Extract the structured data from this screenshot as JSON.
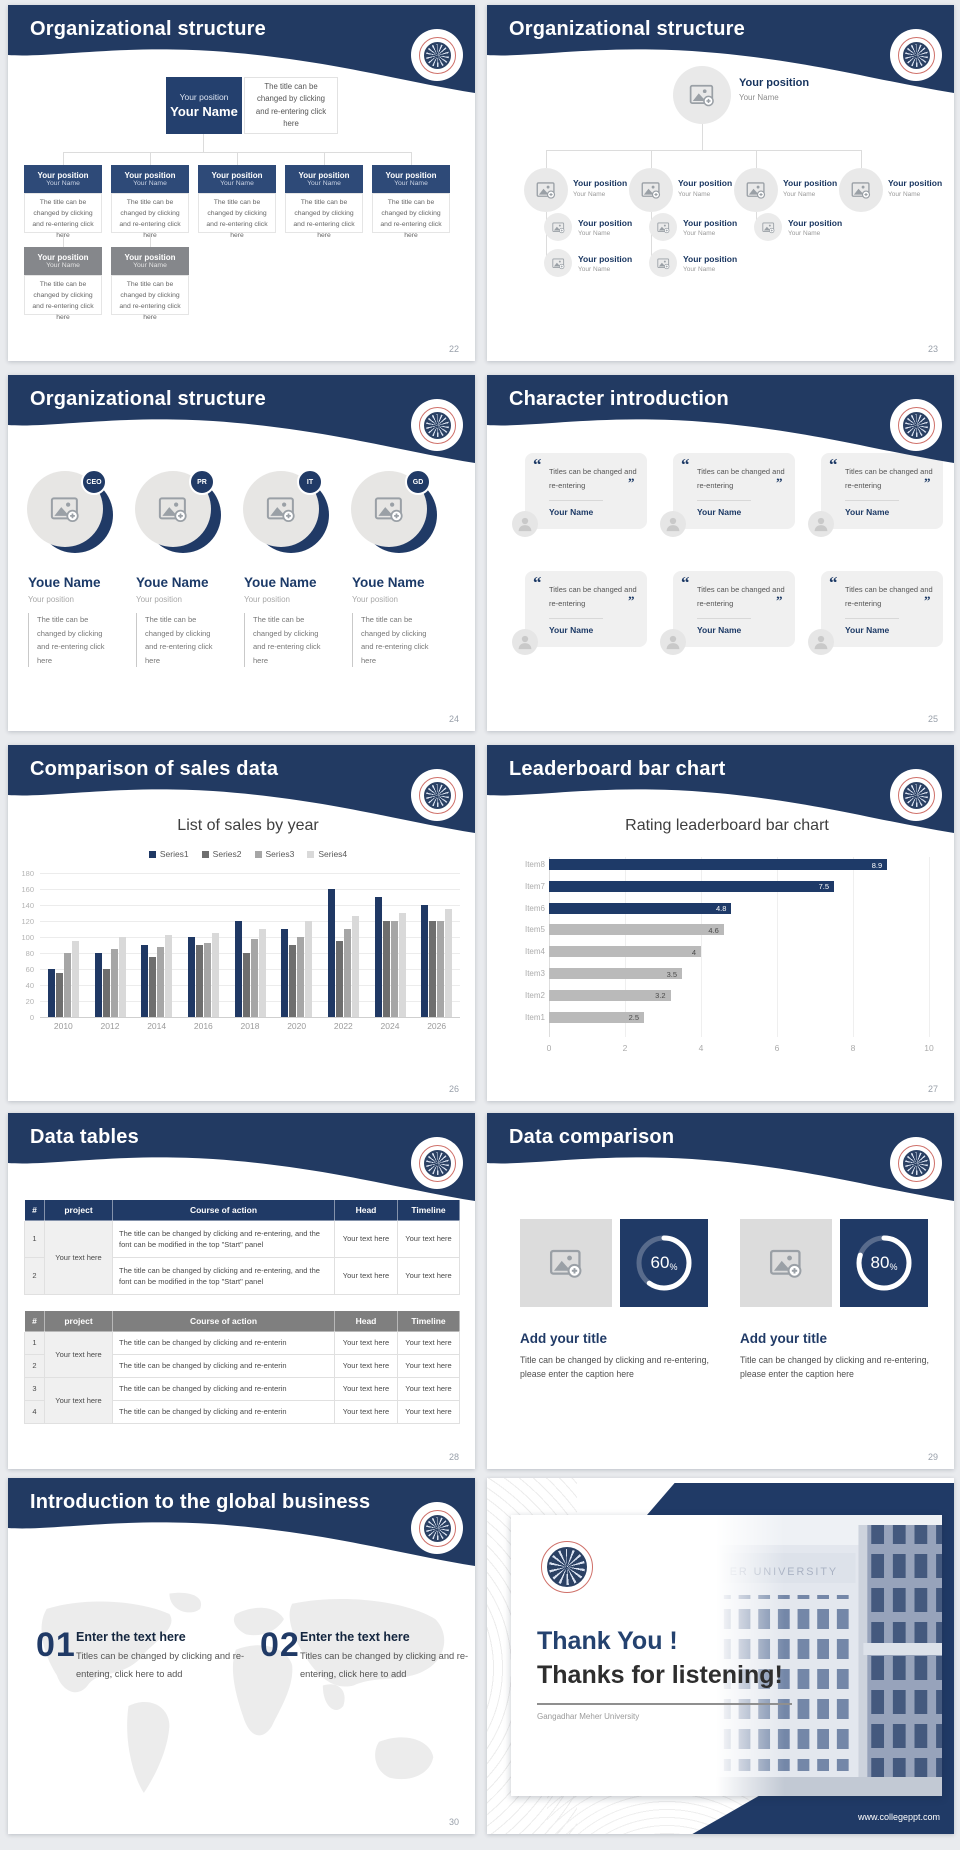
{
  "page": {
    "background": "#e9ebee",
    "accent_navy": "#223a62",
    "footer_url": "www.collegeppt.com"
  },
  "slides": {
    "s22": {
      "title": "Organizational structure",
      "number": "22",
      "root": {
        "position": "Your position",
        "name": "Your Name"
      },
      "root_caption": "The title can be changed by clicking and re-entering click here",
      "node": {
        "position": "Your position",
        "name": "Your Name"
      },
      "caption": "The title can be changed by clicking and re-entering click here",
      "level2_count": 5,
      "level3_count": 2
    },
    "s23": {
      "title": "Organizational structure",
      "number": "23",
      "node_position": "Your position",
      "node_name": "Your Name",
      "mid_count": 4,
      "sub_counts": [
        2,
        2,
        1,
        0
      ]
    },
    "s24": {
      "title": "Organizational structure",
      "number": "24",
      "badges": [
        "CEO",
        "PR",
        "IT",
        "GD"
      ],
      "name": "Youe Name",
      "position": "Your position",
      "caption": "The title can be changed by clicking and re-entering click here"
    },
    "s25": {
      "title": "Character introduction",
      "number": "25",
      "card_count": 6,
      "quote": "Titles can be changed and re-entering",
      "name": "Your Name"
    },
    "s26": {
      "title": "Comparison of sales data",
      "number": "26"
    },
    "s27": {
      "title": "Leaderboard bar chart",
      "number": "27"
    },
    "s28": {
      "title": "Data tables",
      "number": "28",
      "tables": [
        {
          "style": "navy",
          "columns": [
            "#",
            "project",
            "Course of action",
            "Head",
            "Timeline"
          ],
          "project_cells": [
            {
              "text": "Your text here",
              "span": 2
            }
          ],
          "rows": [
            [
              "1",
              "The title can be changed by clicking and re-entering, and the font can be modified in the top \"Start\" panel",
              "Your text here",
              "Your text here"
            ],
            [
              "2",
              "The title can be changed by clicking and re-entering, and the font can be modified in the top \"Start\" panel",
              "Your text here",
              "Your text here"
            ]
          ]
        },
        {
          "style": "gray",
          "columns": [
            "#",
            "project",
            "Course of action",
            "Head",
            "Timeline"
          ],
          "project_cells": [
            {
              "text": "Your text here",
              "span": 2
            },
            {
              "text": "Your text here",
              "span": 2
            }
          ],
          "rows": [
            [
              "1",
              "The title can be changed by clicking and re-enterin",
              "Your text here",
              "Your text here"
            ],
            [
              "2",
              "The title can be changed by clicking and re-enterin",
              "Your text here",
              "Your text here"
            ],
            [
              "3",
              "The title can be changed by clicking and re-enterin",
              "Your text here",
              "Your text here"
            ],
            [
              "4",
              "The title can be changed by clicking and re-enterin",
              "Your text here",
              "Your text here"
            ]
          ]
        }
      ]
    },
    "s29": {
      "title": "Data comparison",
      "number": "29",
      "items": [
        {
          "percent": 60,
          "title": "Add your title",
          "caption": "Title can be changed by clicking and re-entering, please enter the caption here"
        },
        {
          "percent": 80,
          "title": "Add your title",
          "caption": "Title can be changed by clicking and re-entering, please enter the caption here"
        }
      ]
    },
    "s30": {
      "title": "Introduction to the global business",
      "number": "30",
      "items": [
        {
          "num": "01",
          "heading": "Enter the text here",
          "caption": "Titles can be changed by clicking and re-entering, click here to add"
        },
        {
          "num": "02",
          "heading": "Enter the text here",
          "caption": "Titles can be changed by clicking and re-entering, click here to add"
        }
      ]
    },
    "s31": {
      "heading1": "Thank You !",
      "heading2": "Thanks for listening!",
      "subtitle": "Gangadhar Meher University",
      "sign": "ER UNIVERSITY",
      "footer": "www.collegeppt.com"
    }
  },
  "chart_data": [
    {
      "type": "bar",
      "title": "List of sales by year",
      "categories": [
        "2010",
        "2012",
        "2014",
        "2016",
        "2018",
        "2020",
        "2022",
        "2024",
        "2026"
      ],
      "series": [
        {
          "name": "Series1",
          "color": "#1f3864",
          "values": [
            60,
            80,
            90,
            100,
            120,
            110,
            160,
            150,
            140
          ]
        },
        {
          "name": "Series2",
          "color": "#6e6e6e",
          "values": [
            55,
            60,
            75,
            90,
            80,
            90,
            95,
            120,
            120
          ]
        },
        {
          "name": "Series3",
          "color": "#a6a6a6",
          "values": [
            80,
            85,
            88,
            92,
            98,
            100,
            110,
            120,
            120
          ]
        },
        {
          "name": "Series4",
          "color": "#d9d9d9",
          "values": [
            95,
            100,
            102,
            105,
            110,
            120,
            126,
            130,
            135
          ]
        }
      ],
      "xlabel": "",
      "ylabel": "",
      "ylim": [
        0,
        180
      ],
      "ytick_step": 20,
      "legend_position": "top",
      "grid": true
    },
    {
      "type": "bar-horizontal",
      "title": "Rating leaderboard bar chart",
      "categories": [
        "Item1",
        "Item2",
        "Item3",
        "Item4",
        "Item5",
        "Item6",
        "Item7",
        "Item8"
      ],
      "values": [
        2.5,
        3.2,
        3.5,
        4,
        4.6,
        4.8,
        7.5,
        8.9
      ],
      "bar_colors": [
        "gray",
        "gray",
        "gray",
        "gray",
        "gray",
        "navy",
        "navy",
        "navy"
      ],
      "navy_hex": "#1e3a68",
      "gray_hex": "#bababa",
      "xlim": [
        0,
        10
      ],
      "xticks": [
        0,
        2,
        4,
        6,
        8,
        10
      ],
      "value_labels": true,
      "grid": true
    }
  ]
}
